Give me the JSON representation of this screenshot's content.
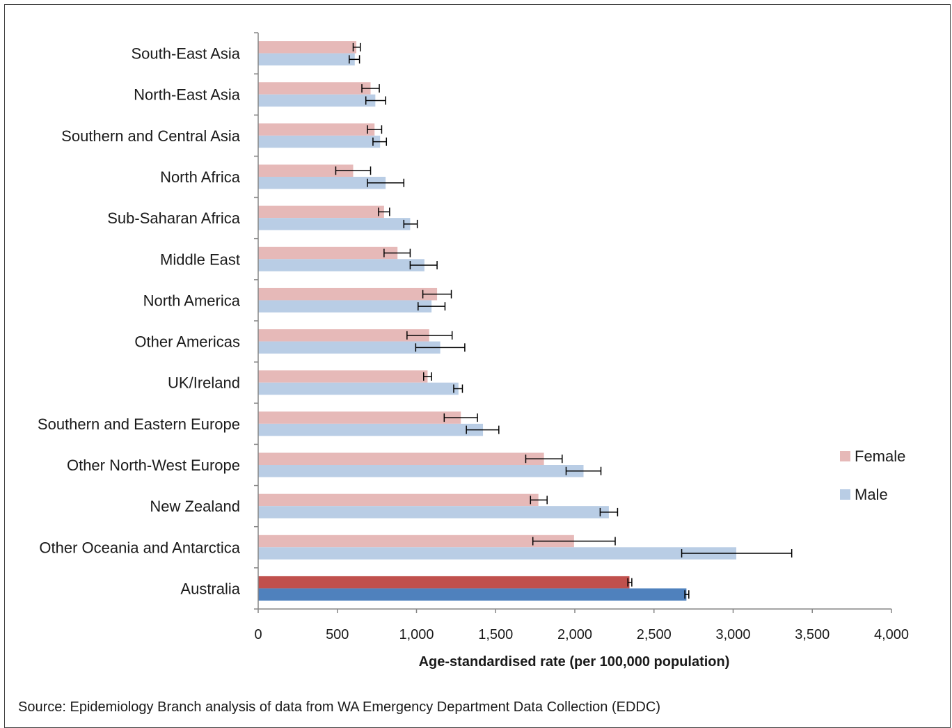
{
  "chart_data": {
    "type": "bar",
    "orientation": "horizontal",
    "title": "",
    "xlabel": "Age-standardised rate (per 100,000 population)",
    "ylabel": "",
    "xlim": [
      0,
      4000
    ],
    "xticks": [
      "0",
      "500",
      "1,000",
      "1,500",
      "2,000",
      "2,500",
      "3,000",
      "3,500",
      "4,000"
    ],
    "xtick_values": [
      0,
      500,
      1000,
      1500,
      2000,
      2500,
      3000,
      3500,
      4000
    ],
    "grid": false,
    "legend_position": "right",
    "categories": [
      "South-East Asia",
      "North-East Asia",
      "Southern and Central Asia",
      "North Africa",
      "Sub-Saharan Africa",
      "Middle East",
      "North America",
      "Other Americas",
      "UK/Ireland",
      "Southern and Eastern Europe",
      "Other North-West Europe",
      "New Zealand",
      "Other Oceania and Antarctica",
      "Australia"
    ],
    "highlight_category": "Australia",
    "series": [
      {
        "name": "Female",
        "color": "#e6b9b8",
        "highlight_color": "#c0504d",
        "values": [
          620,
          710,
          735,
          600,
          795,
          880,
          1130,
          1080,
          1070,
          1280,
          1805,
          1770,
          1995,
          2345
        ],
        "error_low": [
          600,
          655,
          690,
          490,
          760,
          795,
          1040,
          940,
          1045,
          1175,
          1690,
          1720,
          1735,
          2335
        ],
        "error_high": [
          645,
          765,
          780,
          710,
          830,
          960,
          1220,
          1225,
          1095,
          1385,
          1920,
          1825,
          2255,
          2360
        ]
      },
      {
        "name": "Male",
        "color": "#b9cde5",
        "highlight_color": "#4f81bd",
        "values": [
          610,
          740,
          770,
          805,
          960,
          1050,
          1095,
          1150,
          1265,
          1420,
          2055,
          2215,
          3020,
          2705
        ],
        "error_low": [
          575,
          680,
          725,
          690,
          920,
          960,
          1010,
          995,
          1235,
          1315,
          1945,
          2160,
          2675,
          2695
        ],
        "error_high": [
          640,
          805,
          810,
          920,
          1005,
          1130,
          1180,
          1305,
          1290,
          1520,
          2165,
          2270,
          3370,
          2720
        ]
      }
    ]
  },
  "source_note": "Source: Epidemiology Branch analysis of data from WA Emergency Department Data Collection (EDDC)"
}
